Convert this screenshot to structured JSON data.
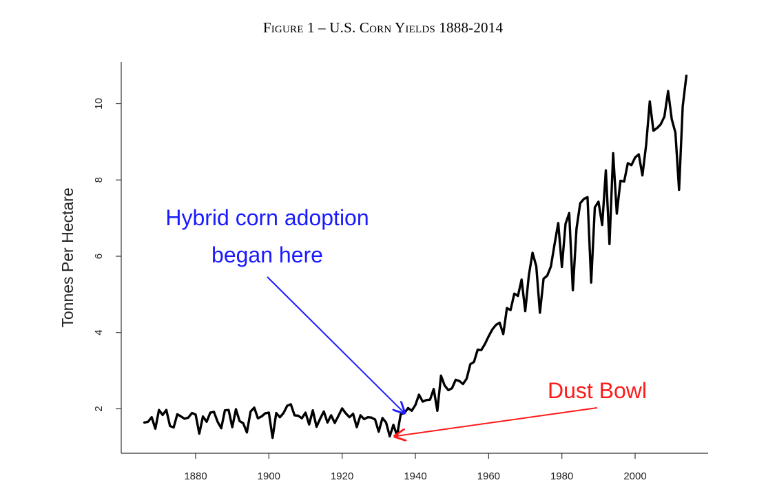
{
  "figure_title": "Figure 1 – U.S. Corn Yields 1888-2014",
  "colors": {
    "line": "#000000",
    "axis": "#333333",
    "hybrid": "#1a1aff",
    "dust": "#ff1a1a"
  },
  "chart_data": {
    "type": "line",
    "title": "Figure 1 – U.S. Corn Yields 1888-2014",
    "xlabel": "",
    "ylabel": "Tonnes Per Hectare",
    "xlim": [
      1866,
      2014
    ],
    "ylim": [
      1.1,
      10.7
    ],
    "xticks": [
      1880,
      1900,
      1920,
      1940,
      1960,
      1980,
      2000
    ],
    "yticks": [
      2,
      4,
      6,
      8,
      10
    ],
    "grid": false,
    "series": [
      {
        "name": "U.S. Corn Yield",
        "x": [
          1866,
          1867,
          1868,
          1869,
          1870,
          1871,
          1872,
          1873,
          1874,
          1875,
          1876,
          1877,
          1878,
          1879,
          1880,
          1881,
          1882,
          1883,
          1884,
          1885,
          1886,
          1887,
          1888,
          1889,
          1890,
          1891,
          1892,
          1893,
          1894,
          1895,
          1896,
          1897,
          1898,
          1899,
          1900,
          1901,
          1902,
          1903,
          1904,
          1905,
          1906,
          1907,
          1908,
          1909,
          1910,
          1911,
          1912,
          1913,
          1914,
          1915,
          1916,
          1917,
          1918,
          1919,
          1920,
          1921,
          1922,
          1923,
          1924,
          1925,
          1926,
          1927,
          1928,
          1929,
          1930,
          1931,
          1932,
          1933,
          1934,
          1935,
          1936,
          1937,
          1938,
          1939,
          1940,
          1941,
          1942,
          1943,
          1944,
          1945,
          1946,
          1947,
          1948,
          1949,
          1950,
          1951,
          1952,
          1953,
          1954,
          1955,
          1956,
          1957,
          1958,
          1959,
          1960,
          1961,
          1962,
          1963,
          1964,
          1965,
          1966,
          1967,
          1968,
          1969,
          1970,
          1971,
          1972,
          1973,
          1974,
          1975,
          1976,
          1977,
          1978,
          1979,
          1980,
          1981,
          1982,
          1983,
          1984,
          1985,
          1986,
          1987,
          1988,
          1989,
          1990,
          1991,
          1992,
          1993,
          1994,
          1995,
          1996,
          1997,
          1998,
          1999,
          2000,
          2001,
          2002,
          2003,
          2004,
          2005,
          2006,
          2007,
          2008,
          2009,
          2010,
          2011,
          2012,
          2013,
          2014
        ],
        "values": [
          1.64,
          1.66,
          1.78,
          1.48,
          1.97,
          1.84,
          1.97,
          1.55,
          1.51,
          1.86,
          1.8,
          1.74,
          1.77,
          1.89,
          1.85,
          1.35,
          1.8,
          1.66,
          1.9,
          1.92,
          1.66,
          1.49,
          1.96,
          1.97,
          1.52,
          1.99,
          1.68,
          1.62,
          1.38,
          1.93,
          2.03,
          1.75,
          1.8,
          1.88,
          1.9,
          1.24,
          1.89,
          1.78,
          1.89,
          2.08,
          2.12,
          1.83,
          1.82,
          1.75,
          1.9,
          1.59,
          1.96,
          1.53,
          1.74,
          1.93,
          1.64,
          1.83,
          1.63,
          1.82,
          2.01,
          1.88,
          1.78,
          1.87,
          1.52,
          1.83,
          1.73,
          1.78,
          1.77,
          1.72,
          1.4,
          1.76,
          1.64,
          1.28,
          1.58,
          1.3,
          1.86,
          1.89,
          2.02,
          1.95,
          2.1,
          2.37,
          2.19,
          2.23,
          2.24,
          2.52,
          1.95,
          2.87,
          2.61,
          2.49,
          2.54,
          2.76,
          2.73,
          2.65,
          2.79,
          3.17,
          3.23,
          3.55,
          3.54,
          3.7,
          3.9,
          4.08,
          4.2,
          4.26,
          3.96,
          4.64,
          4.59,
          5.02,
          4.96,
          5.39,
          4.56,
          5.51,
          6.09,
          5.74,
          4.52,
          5.41,
          5.49,
          5.73,
          6.31,
          6.87,
          5.72,
          6.85,
          7.13,
          5.11,
          6.72,
          7.39,
          7.5,
          7.55,
          5.31,
          7.28,
          7.43,
          6.82,
          8.25,
          6.32,
          8.7,
          7.12,
          7.98,
          7.96,
          8.44,
          8.39,
          8.59,
          8.67,
          8.12,
          8.92,
          10.06,
          9.29,
          9.36,
          9.46,
          9.66,
          10.33,
          9.59,
          9.24,
          7.74,
          9.93,
          10.73
        ]
      }
    ],
    "annotations": [
      {
        "text_lines": [
          "Hybrid corn adoption",
          "began here"
        ],
        "target": [
          1937,
          1.89
        ],
        "color": "blue"
      },
      {
        "text_lines": [
          "Dust Bowl"
        ],
        "target": [
          1934,
          1.28
        ],
        "color": "red"
      }
    ]
  }
}
